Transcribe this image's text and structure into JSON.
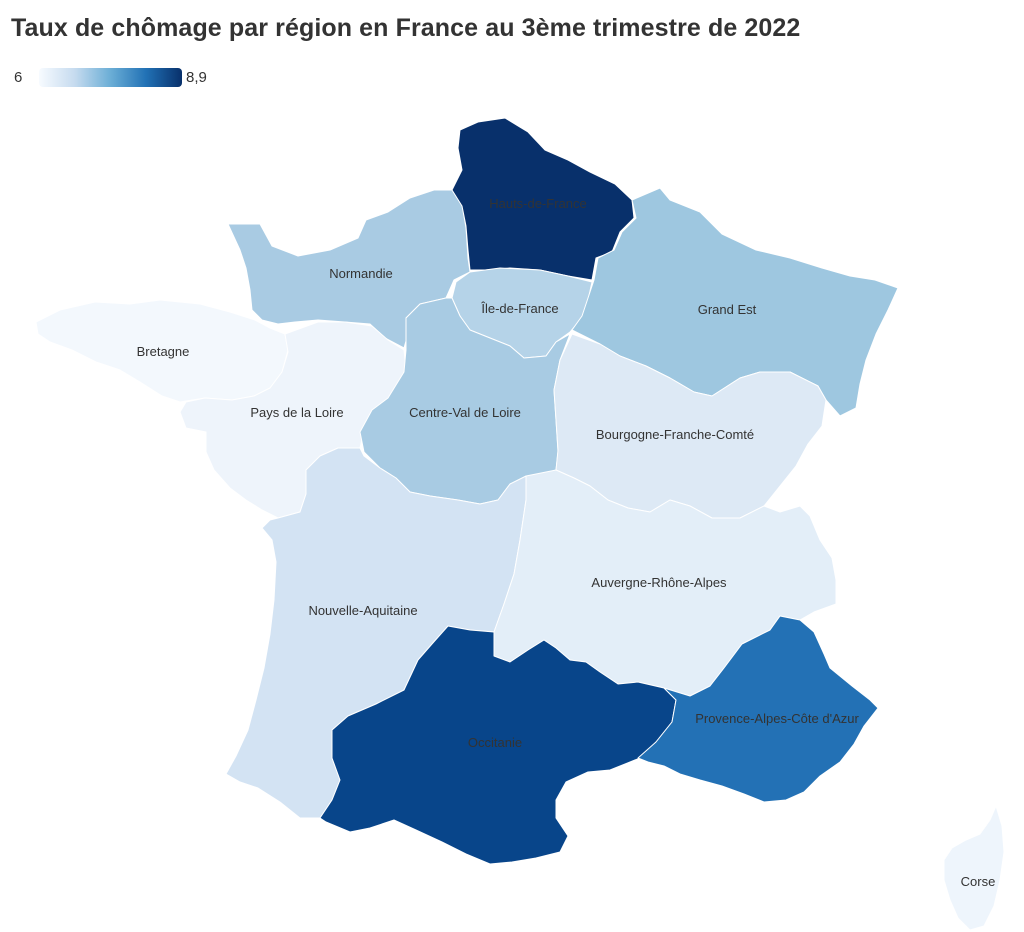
{
  "title": "Taux de chômage par région en France au 3ème trimestre de 2022",
  "legend": {
    "min": "6",
    "max": "8,9",
    "colors": [
      "#f7fbff",
      "#c6dbef",
      "#6baed6",
      "#2171b5",
      "#08306b"
    ]
  },
  "regions": [
    {
      "id": "hauts-de-france",
      "name": "Hauts-de-France",
      "fill": "#08306b"
    },
    {
      "id": "normandie",
      "name": "Normandie",
      "fill": "#a9cbe3"
    },
    {
      "id": "ile-de-france",
      "name": "Île-de-France",
      "fill": "#b5d3e8"
    },
    {
      "id": "grand-est",
      "name": "Grand Est",
      "fill": "#9ec7e0"
    },
    {
      "id": "bretagne",
      "name": "Bretagne",
      "fill": "#f3f8fd"
    },
    {
      "id": "pays-de-la-loire",
      "name": "Pays de la Loire",
      "fill": "#eef4fb"
    },
    {
      "id": "centre-val-de-loire",
      "name": "Centre-Val de Loire",
      "fill": "#a8cbe3"
    },
    {
      "id": "bourgogne-franche-comte",
      "name": "Bourgogne-Franche-Comté",
      "fill": "#dde9f5"
    },
    {
      "id": "nouvelle-aquitaine",
      "name": "Nouvelle-Aquitaine",
      "fill": "#d3e3f3"
    },
    {
      "id": "auvergne-rhone-alpes",
      "name": "Auvergne-Rhône-Alpes",
      "fill": "#e3eef8"
    },
    {
      "id": "occitanie",
      "name": "Occitanie",
      "fill": "#08458a"
    },
    {
      "id": "provence-alpes-cote-dazur",
      "name": "Provence-Alpes-Côte d'Azur",
      "fill": "#2371b5"
    },
    {
      "id": "corse",
      "name": "Corse",
      "fill": "#eef5fc"
    }
  ]
}
